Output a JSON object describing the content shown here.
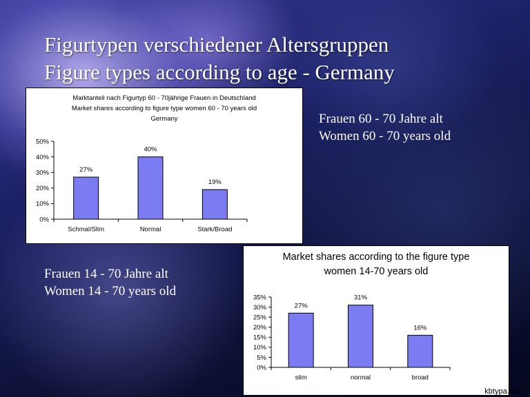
{
  "slide": {
    "title_line1": "Figurtypen verschiedener Altersgruppen",
    "title_line2": "Figure types according to age - Germany",
    "caption_top_de": "Frauen 60 - 70 Jahre alt",
    "caption_top_en": "Women 60 - 70 years old",
    "caption_bottom_de": "Frauen 14 - 70 Jahre alt",
    "caption_bottom_en": "Women 14 - 70 years old",
    "footer": "kbtypa.de"
  },
  "chart_data": [
    {
      "type": "bar",
      "title_lines": [
        "Marktanteil nach Figurtyp 60 - 70jährige Frauen in Deutschland",
        "Market shares according to figure type women 60 - 70 years old",
        "Germany"
      ],
      "categories": [
        "Schmal/Slim",
        "Normal",
        "Stark/Broad"
      ],
      "values": [
        27,
        40,
        19
      ],
      "data_labels": [
        "27%",
        "40%",
        "19%"
      ],
      "ylim": [
        0,
        50
      ],
      "yticks": [
        "0%",
        "10%",
        "20%",
        "30%",
        "40%",
        "50%"
      ],
      "bar_color": "#7b7bf2",
      "grid": false
    },
    {
      "type": "bar",
      "title_lines": [
        "Market shares according to the figure type",
        "women 14-70 years old"
      ],
      "categories": [
        "slim",
        "normal",
        "broad"
      ],
      "values": [
        27,
        31,
        16
      ],
      "data_labels": [
        "27%",
        "31%",
        "16%"
      ],
      "ylim": [
        0,
        35
      ],
      "yticks": [
        "0%",
        "5%",
        "10%",
        "15%",
        "20%",
        "25%",
        "30%",
        "35%"
      ],
      "bar_color": "#7b7bf2",
      "grid": false
    }
  ]
}
